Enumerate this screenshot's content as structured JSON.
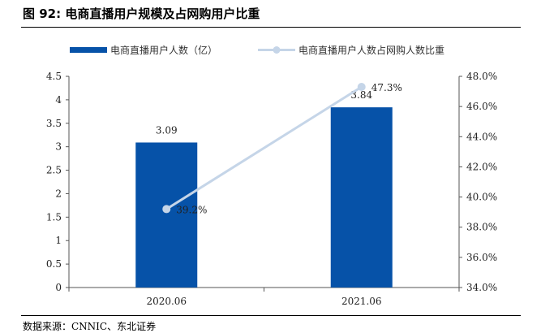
{
  "header": {
    "title": "图 92:  电商直播用户规模及占网购用户比重"
  },
  "footer": {
    "source": "数据来源：CNNIC、东北证券"
  },
  "chart_data": {
    "type": "bar",
    "categories": [
      "2020.06",
      "2021.06"
    ],
    "series": [
      {
        "name": "电商直播用户人数（亿）",
        "type": "bar",
        "axis": "left",
        "values": [
          3.09,
          3.84
        ],
        "labels": [
          "3.09",
          "3.84"
        ],
        "color": "#0652A8"
      },
      {
        "name": "电商直播用户人数占网购人数比重",
        "type": "line",
        "axis": "right",
        "values": [
          39.2,
          47.3
        ],
        "labels": [
          "39.2%",
          "47.3%"
        ],
        "color": "#C5D5E8"
      }
    ],
    "y_left": {
      "min": 0,
      "max": 4.5,
      "ticks": [
        "0",
        "0.5",
        "1",
        "1.5",
        "2",
        "2.5",
        "3",
        "3.5",
        "4",
        "4.5"
      ]
    },
    "y_right": {
      "min": 34,
      "max": 48,
      "ticks": [
        "34.0%",
        "36.0%",
        "38.0%",
        "40.0%",
        "42.0%",
        "44.0%",
        "46.0%",
        "48.0%"
      ]
    },
    "legend_position": "top",
    "grid": false
  }
}
